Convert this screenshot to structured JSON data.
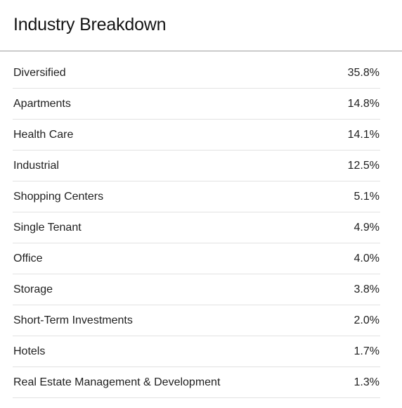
{
  "panel": {
    "title": "Industry Breakdown"
  },
  "breakdown": [
    {
      "label": "Diversified",
      "value": "35.8%"
    },
    {
      "label": "Apartments",
      "value": "14.8%"
    },
    {
      "label": "Health Care",
      "value": "14.1%"
    },
    {
      "label": "Industrial",
      "value": "12.5%"
    },
    {
      "label": "Shopping Centers",
      "value": "5.1%"
    },
    {
      "label": "Single Tenant",
      "value": "4.9%"
    },
    {
      "label": "Office",
      "value": "4.0%"
    },
    {
      "label": "Storage",
      "value": "3.8%"
    },
    {
      "label": "Short-Term Investments",
      "value": "2.0%"
    },
    {
      "label": "Hotels",
      "value": "1.7%"
    },
    {
      "label": "Real Estate Management & Development",
      "value": "1.3%"
    }
  ]
}
